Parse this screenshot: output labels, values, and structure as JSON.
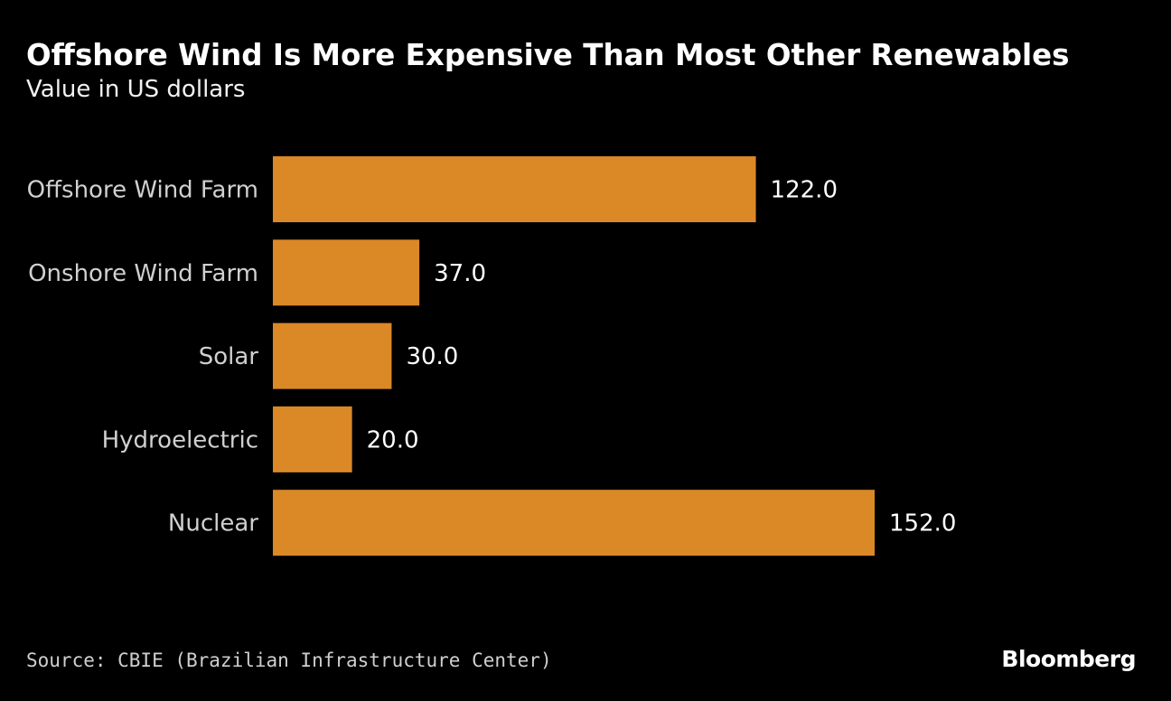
{
  "chart_data": {
    "type": "bar",
    "orientation": "horizontal",
    "title": "Offshore Wind Is More Expensive Than Most Other Renewables",
    "subtitle": "Value in US dollars",
    "categories": [
      "Offshore Wind Farm",
      "Onshore Wind Farm",
      "Solar",
      "Hydroelectric",
      "Nuclear"
    ],
    "values": [
      122.0,
      37.0,
      30.0,
      20.0,
      152.0
    ],
    "value_labels": [
      "122.0",
      "37.0",
      "30.0",
      "20.0",
      "152.0"
    ],
    "xlim": [
      0,
      152
    ],
    "grid": false,
    "bar_color": "#DB8826",
    "background": "#000000"
  },
  "footer": {
    "source": "Source: CBIE (Brazilian Infrastructure Center)",
    "logo": "Bloomberg"
  }
}
